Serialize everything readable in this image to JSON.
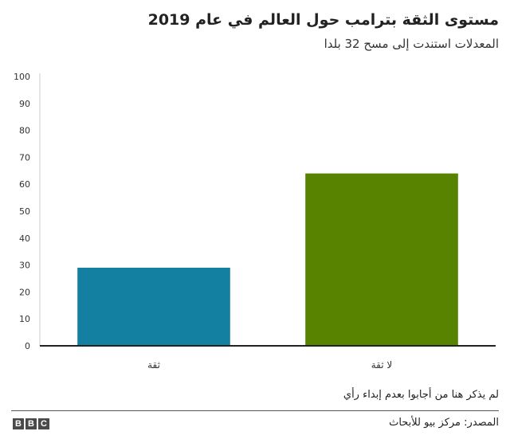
{
  "chart_data": {
    "type": "bar",
    "title": "مستوى الثقة بترامب حول العالم في عام 2019",
    "subtitle": "المعدلات استندت إلى مسح 32 بلدا",
    "categories": [
      "ثقة",
      "لا ثقة"
    ],
    "values": [
      29,
      64
    ],
    "colors": [
      "#1380a1",
      "#588300"
    ],
    "ylim": [
      0,
      100
    ],
    "yticks": [
      0,
      10,
      20,
      30,
      40,
      50,
      60,
      70,
      80,
      90,
      100
    ],
    "grid": false,
    "xlabel": "",
    "ylabel": ""
  },
  "note": "لم يذكر هنا من أجابوا بعدم إبداء رأي",
  "source": "المصدر: مركز بيو للأبحاث",
  "logo": [
    "B",
    "B",
    "C"
  ]
}
